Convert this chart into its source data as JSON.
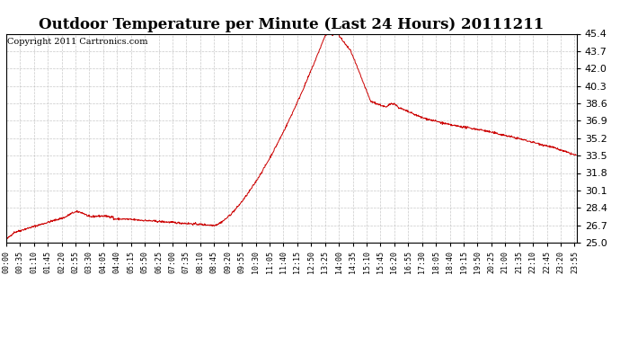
{
  "title": "Outdoor Temperature per Minute (Last 24 Hours) 20111211",
  "copyright": "Copyright 2011 Cartronics.com",
  "line_color": "#cc0000",
  "bg_color": "#ffffff",
  "plot_bg_color": "#ffffff",
  "grid_color": "#bbbbbb",
  "ylim": [
    25.0,
    45.4
  ],
  "yticks": [
    25.0,
    26.7,
    28.4,
    30.1,
    31.8,
    33.5,
    35.2,
    36.9,
    38.6,
    40.3,
    42.0,
    43.7,
    45.4
  ],
  "xtick_labels": [
    "00:00",
    "00:35",
    "01:10",
    "01:45",
    "02:20",
    "02:55",
    "03:30",
    "04:05",
    "04:40",
    "05:15",
    "05:50",
    "06:25",
    "07:00",
    "07:35",
    "08:10",
    "08:45",
    "09:20",
    "09:55",
    "10:30",
    "11:05",
    "11:40",
    "12:15",
    "12:50",
    "13:25",
    "14:00",
    "14:35",
    "15:10",
    "15:45",
    "16:20",
    "16:55",
    "17:30",
    "18:05",
    "18:40",
    "19:15",
    "19:50",
    "20:25",
    "21:00",
    "21:35",
    "22:10",
    "22:45",
    "23:20",
    "23:55"
  ],
  "title_fontsize": 12,
  "copyright_fontsize": 7,
  "ytick_fontsize": 8,
  "xtick_fontsize": 6
}
